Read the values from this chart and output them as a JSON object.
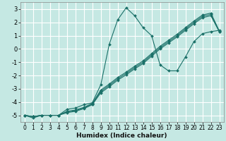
{
  "xlabel": "Humidex (Indice chaleur)",
  "bg_color": "#c5e8e3",
  "grid_color": "#ffffff",
  "line_color": "#1a7068",
  "xlim": [
    -0.5,
    23.5
  ],
  "ylim": [
    -5.5,
    3.5
  ],
  "xticks": [
    0,
    1,
    2,
    3,
    4,
    5,
    6,
    7,
    8,
    9,
    10,
    11,
    12,
    13,
    14,
    15,
    16,
    17,
    18,
    19,
    20,
    21,
    22,
    23
  ],
  "yticks": [
    -5,
    -4,
    -3,
    -2,
    -1,
    0,
    1,
    2,
    3
  ],
  "lines": [
    {
      "x": [
        0,
        1,
        2,
        3,
        4,
        5,
        6,
        7,
        8,
        9,
        10,
        11,
        12,
        13,
        14,
        15,
        16,
        17,
        18,
        19,
        20,
        21,
        22,
        23
      ],
      "y": [
        -5,
        -5.2,
        -5,
        -5,
        -5,
        -4.55,
        -4.45,
        -4.2,
        -4.05,
        -2.7,
        0.35,
        2.2,
        3.1,
        2.5,
        1.6,
        1.0,
        -1.2,
        -1.65,
        -1.65,
        -0.6,
        0.55,
        1.15,
        1.3,
        1.4
      ]
    },
    {
      "x": [
        0,
        1,
        2,
        3,
        4,
        5,
        6,
        7,
        8,
        9,
        10,
        11,
        12,
        13,
        14,
        15,
        16,
        17,
        18,
        19,
        20,
        21,
        22,
        23
      ],
      "y": [
        -5,
        -5.1,
        -5,
        -5,
        -5,
        -4.7,
        -4.6,
        -4.4,
        -4.1,
        -3.1,
        -2.65,
        -2.15,
        -1.75,
        -1.3,
        -0.9,
        -0.35,
        0.2,
        0.65,
        1.1,
        1.6,
        2.1,
        2.55,
        2.7,
        1.35
      ]
    },
    {
      "x": [
        0,
        1,
        2,
        3,
        4,
        5,
        6,
        7,
        8,
        9,
        10,
        11,
        12,
        13,
        14,
        15,
        16,
        17,
        18,
        19,
        20,
        21,
        22,
        23
      ],
      "y": [
        -5,
        -5.1,
        -5,
        -5,
        -5,
        -4.75,
        -4.65,
        -4.45,
        -4.15,
        -3.2,
        -2.75,
        -2.25,
        -1.85,
        -1.4,
        -1.0,
        -0.45,
        0.1,
        0.55,
        1.0,
        1.5,
        2.0,
        2.45,
        2.6,
        1.3
      ]
    },
    {
      "x": [
        0,
        1,
        2,
        3,
        4,
        5,
        6,
        7,
        8,
        9,
        10,
        11,
        12,
        13,
        14,
        15,
        16,
        17,
        18,
        19,
        20,
        21,
        22,
        23
      ],
      "y": [
        -5,
        -5.1,
        -5,
        -5,
        -5,
        -4.8,
        -4.7,
        -4.5,
        -4.2,
        -3.3,
        -2.85,
        -2.35,
        -1.95,
        -1.5,
        -1.1,
        -0.55,
        0.0,
        0.45,
        0.9,
        1.4,
        1.9,
        2.35,
        2.5,
        1.3
      ]
    }
  ]
}
